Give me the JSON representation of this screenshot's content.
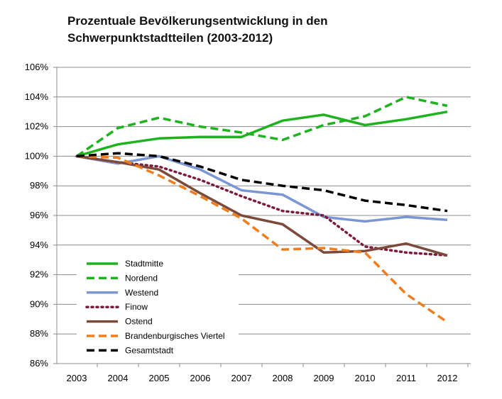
{
  "chart_data": {
    "type": "line",
    "title_line1": "Prozentuale Bevölkerungsentwicklung in den",
    "title_line2": "Schwerpunktstadtteilen (2003-2012)",
    "xlabel": "",
    "ylabel": "",
    "x": [
      2003,
      2004,
      2005,
      2006,
      2007,
      2008,
      2009,
      2010,
      2011,
      2012
    ],
    "ylim": [
      86,
      106
    ],
    "yticks": [
      86,
      88,
      90,
      92,
      94,
      96,
      98,
      100,
      102,
      104,
      106
    ],
    "ytick_format": "{v}%",
    "grid": "horizontal",
    "legend_position": "bottom-left",
    "series": [
      {
        "name": "Stadtmitte",
        "color": "#1db31d",
        "style": "solid",
        "values": [
          100.0,
          100.8,
          101.2,
          101.3,
          101.3,
          102.4,
          102.8,
          102.1,
          102.5,
          103.0
        ]
      },
      {
        "name": "Nordend",
        "color": "#1db31d",
        "style": "dashed",
        "values": [
          100.0,
          101.9,
          102.6,
          102.0,
          101.6,
          101.1,
          102.1,
          102.7,
          104.0,
          103.4
        ]
      },
      {
        "name": "Westend",
        "color": "#7a96d4",
        "style": "solid",
        "values": [
          100.0,
          99.5,
          100.0,
          99.1,
          97.7,
          97.4,
          95.9,
          95.6,
          95.9,
          95.7
        ]
      },
      {
        "name": "Finow",
        "color": "#7b1a3a",
        "style": "dotted",
        "values": [
          100.0,
          99.6,
          99.3,
          98.4,
          97.3,
          96.3,
          96.0,
          93.9,
          93.5,
          93.3
        ]
      },
      {
        "name": "Ostend",
        "color": "#7b4a3a",
        "style": "solid",
        "values": [
          100.0,
          99.6,
          99.1,
          97.5,
          96.0,
          95.4,
          93.5,
          93.6,
          94.1,
          93.3
        ]
      },
      {
        "name": "Brandenburgisches Viertel",
        "color": "#f07d1c",
        "style": "dashed",
        "values": [
          100.0,
          99.9,
          98.7,
          97.3,
          95.8,
          93.7,
          93.8,
          93.5,
          90.7,
          88.8
        ]
      },
      {
        "name": "Gesamtstadt",
        "color": "#000000",
        "style": "dashed",
        "values": [
          100.0,
          100.2,
          100.0,
          99.3,
          98.4,
          98.0,
          97.7,
          97.0,
          96.7,
          96.3
        ]
      }
    ]
  }
}
